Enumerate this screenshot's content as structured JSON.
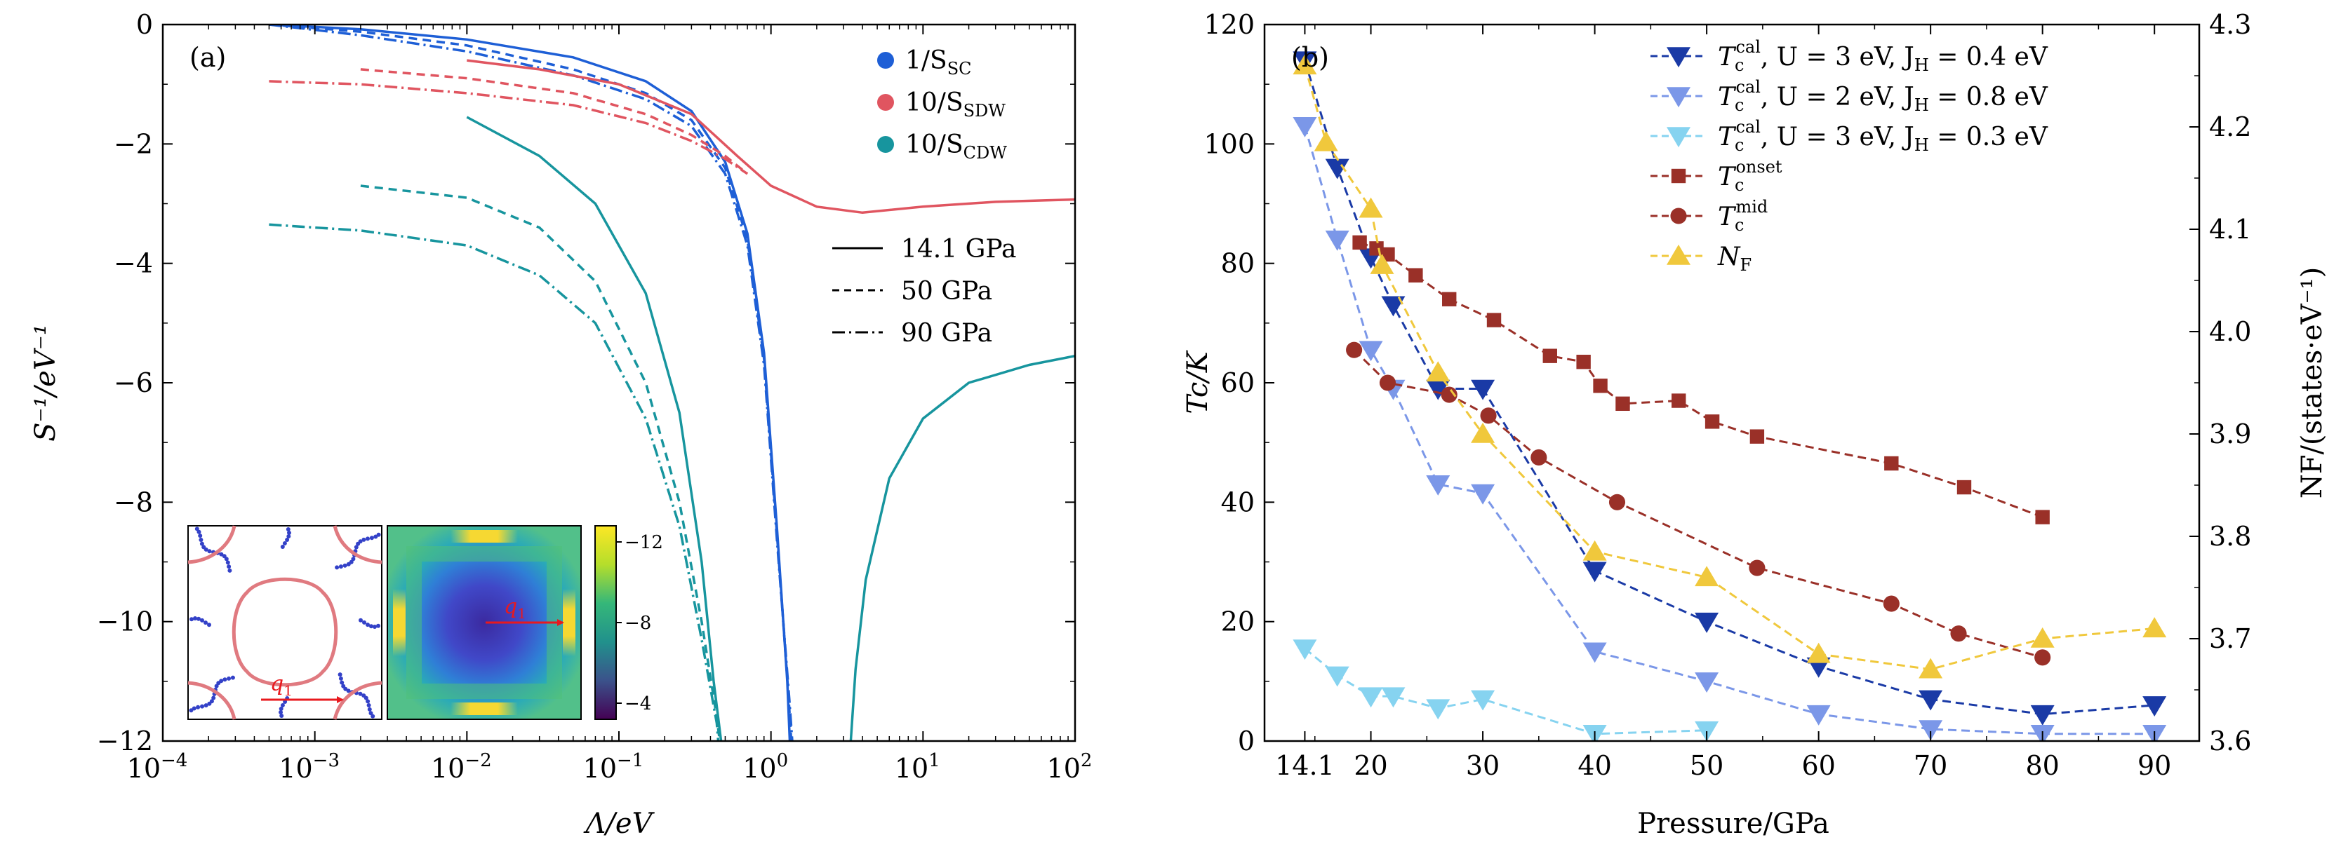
{
  "chart_data": [
    {
      "type": "line",
      "panel_label": "(a)",
      "xlabel": "Λ/eV",
      "ylabel": "S⁻¹/eV⁻¹",
      "xscale": "log",
      "xlim": [
        0.0001,
        100
      ],
      "ylim": [
        -12,
        0
      ],
      "xticks": [
        {
          "v": 0.0001,
          "base": "10",
          "exp": "−4"
        },
        {
          "v": 0.001,
          "base": "10",
          "exp": "−3"
        },
        {
          "v": 0.01,
          "base": "10",
          "exp": "−2"
        },
        {
          "v": 0.1,
          "base": "10",
          "exp": "−1"
        },
        {
          "v": 1,
          "base": "10",
          "exp": "0"
        },
        {
          "v": 10,
          "base": "10",
          "exp": "1"
        },
        {
          "v": 100,
          "base": "10",
          "exp": "2"
        }
      ],
      "yticks": [
        {
          "v": 0,
          "label": "0"
        },
        {
          "v": -2,
          "label": "−2"
        },
        {
          "v": -4,
          "label": "−4"
        },
        {
          "v": -6,
          "label": "−6"
        },
        {
          "v": -8,
          "label": "−8"
        },
        {
          "v": -10,
          "label": "−10"
        },
        {
          "v": -12,
          "label": "−12"
        }
      ],
      "legend_color": [
        {
          "label": "1/S",
          "sub": "SC",
          "color": "#1e5fd6"
        },
        {
          "label": "10/S",
          "sub": "SDW",
          "color": "#e05560"
        },
        {
          "label": "10/S",
          "sub": "CDW",
          "color": "#17959e"
        }
      ],
      "legend_style": [
        {
          "label": "14.1 GPa",
          "style": "solid"
        },
        {
          "label": "50 GPa",
          "style": "dashed"
        },
        {
          "label": "90 GPa",
          "style": "dashdot"
        }
      ],
      "series": [
        {
          "name": "SC 14.1 GPa",
          "color": "#1e5fd6",
          "style": "solid",
          "points": [
            [
              0.0005,
              0
            ],
            [
              0.002,
              -0.08
            ],
            [
              0.01,
              -0.25
            ],
            [
              0.05,
              -0.55
            ],
            [
              0.15,
              -0.95
            ],
            [
              0.3,
              -1.45
            ],
            [
              0.5,
              -2.3
            ],
            [
              0.7,
              -3.5
            ],
            [
              0.9,
              -5.5
            ],
            [
              1.1,
              -8.5
            ],
            [
              1.28,
              -11.0
            ],
            [
              1.33,
              -12
            ]
          ]
        },
        {
          "name": "SC 50 GPa",
          "color": "#1e5fd6",
          "style": "dashed",
          "points": [
            [
              0.0005,
              0
            ],
            [
              0.002,
              -0.12
            ],
            [
              0.01,
              -0.35
            ],
            [
              0.05,
              -0.75
            ],
            [
              0.15,
              -1.15
            ],
            [
              0.3,
              -1.6
            ],
            [
              0.5,
              -2.4
            ],
            [
              0.7,
              -3.6
            ],
            [
              0.9,
              -5.6
            ],
            [
              1.1,
              -8.6
            ],
            [
              1.3,
              -11.2
            ],
            [
              1.36,
              -12
            ]
          ]
        },
        {
          "name": "SC 90 GPa",
          "color": "#1e5fd6",
          "style": "dashdot",
          "points": [
            [
              0.0005,
              0
            ],
            [
              0.002,
              -0.18
            ],
            [
              0.01,
              -0.45
            ],
            [
              0.05,
              -0.85
            ],
            [
              0.15,
              -1.25
            ],
            [
              0.3,
              -1.7
            ],
            [
              0.5,
              -2.5
            ],
            [
              0.7,
              -3.7
            ],
            [
              0.9,
              -5.7
            ],
            [
              1.1,
              -8.7
            ],
            [
              1.32,
              -11.3
            ],
            [
              1.38,
              -12
            ]
          ]
        },
        {
          "name": "SDW 14.1 GPa",
          "color": "#e05560",
          "style": "solid",
          "points": [
            [
              0.01,
              -0.6
            ],
            [
              0.03,
              -0.75
            ],
            [
              0.1,
              -1.0
            ],
            [
              0.3,
              -1.5
            ],
            [
              0.6,
              -2.2
            ],
            [
              1,
              -2.7
            ],
            [
              2,
              -3.05
            ],
            [
              4,
              -3.15
            ],
            [
              10,
              -3.05
            ],
            [
              30,
              -2.97
            ],
            [
              100,
              -2.93
            ]
          ]
        },
        {
          "name": "SDW 50 GPa",
          "color": "#e05560",
          "style": "dashed",
          "points": [
            [
              0.002,
              -0.75
            ],
            [
              0.01,
              -0.9
            ],
            [
              0.05,
              -1.15
            ],
            [
              0.15,
              -1.5
            ],
            [
              0.3,
              -1.85
            ],
            [
              0.5,
              -2.2
            ],
            [
              0.7,
              -2.5
            ]
          ]
        },
        {
          "name": "SDW 90 GPa",
          "color": "#e05560",
          "style": "dashdot",
          "points": [
            [
              0.0005,
              -0.95
            ],
            [
              0.002,
              -1.0
            ],
            [
              0.01,
              -1.15
            ],
            [
              0.05,
              -1.35
            ],
            [
              0.15,
              -1.65
            ],
            [
              0.3,
              -1.95
            ],
            [
              0.5,
              -2.25
            ],
            [
              0.7,
              -2.5
            ]
          ]
        },
        {
          "name": "CDW 14.1 GPa",
          "color": "#17959e",
          "style": "solid",
          "points": [
            [
              0.01,
              -1.55
            ],
            [
              0.03,
              -2.2
            ],
            [
              0.07,
              -3.0
            ],
            [
              0.15,
              -4.5
            ],
            [
              0.25,
              -6.5
            ],
            [
              0.35,
              -9.0
            ],
            [
              0.42,
              -11.0
            ],
            [
              0.47,
              -12
            ]
          ]
        },
        {
          "name": "CDW 14.1 GPa (high Λ)",
          "color": "#17959e",
          "style": "solid",
          "points": [
            [
              3.35,
              -12
            ],
            [
              3.6,
              -10.8
            ],
            [
              4.2,
              -9.3
            ],
            [
              6,
              -7.6
            ],
            [
              10,
              -6.6
            ],
            [
              20,
              -6.0
            ],
            [
              50,
              -5.7
            ],
            [
              100,
              -5.55
            ]
          ]
        },
        {
          "name": "CDW 50 GPa",
          "color": "#17959e",
          "style": "dashed",
          "points": [
            [
              0.002,
              -2.7
            ],
            [
              0.01,
              -2.9
            ],
            [
              0.03,
              -3.4
            ],
            [
              0.07,
              -4.3
            ],
            [
              0.15,
              -6.0
            ],
            [
              0.25,
              -8.0
            ],
            [
              0.35,
              -10.0
            ],
            [
              0.44,
              -11.6
            ],
            [
              0.46,
              -12
            ]
          ]
        },
        {
          "name": "CDW 90 GPa",
          "color": "#17959e",
          "style": "dashdot",
          "points": [
            [
              0.0005,
              -3.35
            ],
            [
              0.002,
              -3.45
            ],
            [
              0.01,
              -3.7
            ],
            [
              0.03,
              -4.2
            ],
            [
              0.07,
              -5.0
            ],
            [
              0.15,
              -6.6
            ],
            [
              0.25,
              -8.4
            ],
            [
              0.35,
              -10.3
            ],
            [
              0.44,
              -11.7
            ],
            [
              0.45,
              -12
            ]
          ]
        }
      ],
      "inset": {
        "fermi_label": "q",
        "fermi_label_sub": "1",
        "heatmap_label": "q",
        "heatmap_label_sub": "1",
        "colorbar_ticks": [
          "−12",
          "−8",
          "−4"
        ]
      }
    },
    {
      "type": "line",
      "panel_label": "(b)",
      "xlabel": "Pressure/GPa",
      "ylabel_left": "Tc/K",
      "ylabel_right": "NF/(states·eV⁻¹)",
      "xlim": [
        10.5,
        94
      ],
      "ylim": [
        0,
        120
      ],
      "ylim_right": [
        3.6,
        4.3
      ],
      "xticks": [
        {
          "v": 14.1,
          "label": "14.1"
        },
        {
          "v": 20,
          "label": "20"
        },
        {
          "v": 30,
          "label": "30"
        },
        {
          "v": 40,
          "label": "40"
        },
        {
          "v": 50,
          "label": "50"
        },
        {
          "v": 60,
          "label": "60"
        },
        {
          "v": 70,
          "label": "70"
        },
        {
          "v": 80,
          "label": "80"
        },
        {
          "v": 90,
          "label": "90"
        }
      ],
      "yticks": [
        {
          "v": 0,
          "label": "0"
        },
        {
          "v": 20,
          "label": "20"
        },
        {
          "v": 40,
          "label": "40"
        },
        {
          "v": 60,
          "label": "60"
        },
        {
          "v": 80,
          "label": "80"
        },
        {
          "v": 100,
          "label": "100"
        },
        {
          "v": 120,
          "label": "120"
        }
      ],
      "yticks_right": [
        {
          "v": 3.6,
          "label": "3.6"
        },
        {
          "v": 3.7,
          "label": "3.7"
        },
        {
          "v": 3.8,
          "label": "3.8"
        },
        {
          "v": 3.9,
          "label": "3.9"
        },
        {
          "v": 4.0,
          "label": "4.0"
        },
        {
          "v": 4.1,
          "label": "4.1"
        },
        {
          "v": 4.2,
          "label": "4.2"
        },
        {
          "v": 4.3,
          "label": "4.3"
        }
      ],
      "series": [
        {
          "name": "Tc cal, U = 3 eV, JH = 0.4 eV",
          "legend_sup": "cal",
          "legend_rest": ", U = 3 eV,  J",
          "legend_jsub": "H",
          "legend_tail": " = 0.4 eV",
          "color": "#1a3aa6",
          "marker": "tri-down",
          "axis": "left",
          "x": [
            14.1,
            17,
            20,
            22,
            26,
            30,
            40,
            50,
            60,
            70,
            80,
            90
          ],
          "y": [
            114,
            96,
            81,
            73,
            59,
            59,
            28.5,
            20,
            12.5,
            7,
            4.5,
            6
          ]
        },
        {
          "name": "Tc cal, U = 2 eV, JH = 0.8 eV",
          "legend_sup": "cal",
          "legend_rest": ", U = 2 eV,  J",
          "legend_jsub": "H",
          "legend_tail": " = 0.8 eV",
          "color": "#7b97e8",
          "marker": "tri-down",
          "axis": "left",
          "x": [
            14.1,
            17,
            20,
            22,
            26,
            30,
            40,
            50,
            60,
            70,
            80,
            90
          ],
          "y": [
            103,
            84,
            65.5,
            59,
            43,
            41.5,
            15,
            10,
            4.5,
            2,
            1.2,
            1.2
          ]
        },
        {
          "name": "Tc cal, U = 3 eV, JH = 0.3 eV",
          "legend_sup": "cal",
          "legend_rest": ", U = 3 eV,  J",
          "legend_jsub": "H",
          "legend_tail": " = 0.3 eV",
          "color": "#86d3f0",
          "marker": "tri-down",
          "axis": "left",
          "x": [
            14.1,
            17,
            20,
            22,
            26,
            30,
            40,
            50
          ],
          "y": [
            15.5,
            11,
            7.5,
            7.5,
            5.5,
            7,
            1.2,
            1.8
          ]
        },
        {
          "name": "Tc onset",
          "legend_sup": "onset",
          "legend_rest": "",
          "legend_jsub": "",
          "legend_tail": "",
          "color": "#9a3028",
          "marker": "square",
          "axis": "left",
          "x": [
            19,
            20.5,
            21.5,
            24,
            27,
            31,
            36,
            39,
            40.5,
            42.5,
            47.5,
            50.5,
            54.5,
            66.5,
            73,
            80
          ],
          "y": [
            83.5,
            82.5,
            81.5,
            78,
            74,
            70.5,
            64.5,
            63.5,
            59.5,
            56.5,
            57,
            53.5,
            51,
            46.5,
            42.5,
            37.5
          ]
        },
        {
          "name": "Tc mid",
          "legend_sup": "mid",
          "legend_rest": "",
          "legend_jsub": "",
          "legend_tail": "",
          "color": "#9a3028",
          "marker": "circle",
          "axis": "left",
          "x": [
            18.5,
            21.5,
            27,
            30.5,
            35,
            42,
            54.5,
            66.5,
            72.5,
            80
          ],
          "y": [
            65.5,
            60,
            58,
            54.5,
            47.5,
            40,
            29,
            23,
            18,
            14
          ]
        },
        {
          "name": "NF",
          "legend_sup": "",
          "legend_rest": "",
          "legend_jsub": "",
          "legend_tail": "",
          "color": "#f0c83c",
          "marker": "tri-up",
          "axis": "right",
          "x": [
            14.1,
            16,
            20,
            21,
            26,
            30,
            40,
            50,
            60,
            70,
            80,
            90
          ],
          "y": [
            4.26,
            4.185,
            4.12,
            4.065,
            3.96,
            3.9,
            3.785,
            3.76,
            3.685,
            3.67,
            3.7,
            3.71
          ]
        }
      ]
    }
  ]
}
